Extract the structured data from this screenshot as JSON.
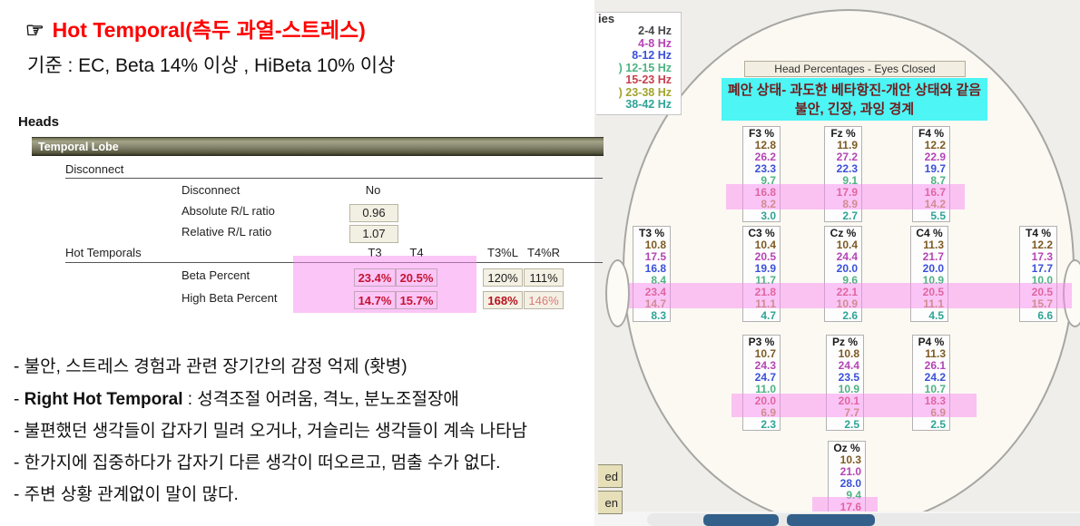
{
  "left_panel": {
    "pointer": "☞",
    "title": "Hot Temporal(측두 과열-스트레스)",
    "title_color": "#ff0000",
    "criteria": "기준 : EC, Beta 14% 이상 , HiBeta 10% 이상",
    "heads_label": "Heads",
    "section_header": "Temporal Lobe",
    "disconnect": {
      "group_label": "Disconnect",
      "rows": [
        {
          "label": "Disconnect",
          "value": "No",
          "boxed": false
        },
        {
          "label": "Absolute R/L ratio",
          "value": "0.96",
          "boxed": true
        },
        {
          "label": "Relative R/L ratio",
          "value": "1.07",
          "boxed": true
        }
      ]
    },
    "hot_temporals": {
      "group_label": "Hot Temporals",
      "columns": [
        "T3",
        "T4",
        "T3%L",
        "T4%R"
      ],
      "rows": [
        {
          "label": "Beta Percent",
          "t3": "23.4%",
          "t4": "20.5%",
          "ratio_l": "120%",
          "ratio_r": "111%",
          "ratio_l_style": "plain",
          "ratio_r_style": "plain"
        },
        {
          "label": "High Beta Percent",
          "t3": "14.7%",
          "t4": "15.7%",
          "ratio_l": "168%",
          "ratio_r": "146%",
          "ratio_l_style": "red-bold",
          "ratio_r_style": "red-light"
        }
      ]
    },
    "bullets": [
      {
        "pre": "- ",
        "bold": "",
        "rest": "불안, 스트레스 경험과 관련 장기간의 감정 억제 (홧병)"
      },
      {
        "pre": "- ",
        "bold": "Right Hot Temporal",
        "rest": "  : 성격조절 어려움, 격노, 분노조절장애"
      },
      {
        "pre": "- ",
        "bold": "",
        "rest": "불편했던 생각들이 갑자기 밀려 오거나, 거슬리는 생각들이 계속 나타남"
      },
      {
        "pre": "- ",
        "bold": "",
        "rest": "한가지에 집중하다가 갑자기 다른 생각이 떠오르고, 멈출 수가 없다."
      },
      {
        "pre": "- ",
        "bold": "",
        "rest": "주변 상황 관계없이 말이 많다."
      }
    ]
  },
  "head_map": {
    "legend": {
      "header": "ies",
      "items": [
        {
          "label": "2-4 Hz",
          "color": "#46464a"
        },
        {
          "label": "4-8 Hz",
          "color": "#b544b5"
        },
        {
          "label": "8-12 Hz",
          "color": "#3a50d9"
        },
        {
          "label": ") 12-15 Hz",
          "color": "#4db381"
        },
        {
          "label": "15-23 Hz",
          "color": "#c8404e"
        },
        {
          "label": ") 23-38 Hz",
          "color": "#a3a32e"
        },
        {
          "label": "38-42 Hz",
          "color": "#2ea496"
        }
      ]
    },
    "caption": "Head Percentages - Eyes Closed",
    "callout": {
      "line1": "폐안 상태- 과도한 베타항진-개안 상태와 같음",
      "line2": "불안, 긴장, 과잉 경계",
      "bg_color": "#4df5f5",
      "text_color": "#701d1d"
    },
    "band_value_colors": [
      "#7d5a22",
      "#b544b5",
      "#3a50d9",
      "#4db381",
      "#c83e50",
      "#ab8b33",
      "#2ea496"
    ],
    "highlight_color": "rgba(247,140,240,0.5)",
    "electrodes": [
      {
        "id": "F3",
        "label": "F3 %",
        "values": [
          "12.8",
          "26.2",
          "23.3",
          "9.7",
          "16.8",
          "8.2",
          "3.0"
        ]
      },
      {
        "id": "Fz",
        "label": "Fz %",
        "values": [
          "11.9",
          "27.2",
          "22.3",
          "9.1",
          "17.9",
          "8.9",
          "2.7"
        ]
      },
      {
        "id": "F4",
        "label": "F4 %",
        "values": [
          "12.2",
          "22.9",
          "19.7",
          "8.7",
          "16.7",
          "14.2",
          "5.5"
        ]
      },
      {
        "id": "T3",
        "label": "T3 %",
        "values": [
          "10.8",
          "17.5",
          "16.8",
          "8.4",
          "23.4",
          "14.7",
          "8.3"
        ]
      },
      {
        "id": "C3",
        "label": "C3 %",
        "values": [
          "10.4",
          "20.5",
          "19.9",
          "11.7",
          "21.8",
          "11.1",
          "4.7"
        ]
      },
      {
        "id": "Cz",
        "label": "Cz %",
        "values": [
          "10.4",
          "24.4",
          "20.0",
          "9.6",
          "22.1",
          "10.9",
          "2.6"
        ]
      },
      {
        "id": "C4",
        "label": "C4 %",
        "values": [
          "11.3",
          "21.7",
          "20.0",
          "10.9",
          "20.5",
          "11.1",
          "4.5"
        ]
      },
      {
        "id": "T4",
        "label": "T4 %",
        "values": [
          "12.2",
          "17.3",
          "17.7",
          "10.0",
          "20.5",
          "15.7",
          "6.6"
        ]
      },
      {
        "id": "P3",
        "label": "P3 %",
        "values": [
          "10.7",
          "24.3",
          "24.7",
          "11.0",
          "20.0",
          "6.9",
          "2.3"
        ]
      },
      {
        "id": "Pz",
        "label": "Pz %",
        "values": [
          "10.8",
          "24.4",
          "23.5",
          "10.9",
          "20.1",
          "7.7",
          "2.5"
        ]
      },
      {
        "id": "P4",
        "label": "P4 %",
        "values": [
          "11.3",
          "26.1",
          "24.2",
          "10.7",
          "18.3",
          "6.9",
          "2.5"
        ]
      },
      {
        "id": "Oz",
        "label": "Oz %",
        "values": [
          "10.3",
          "21.0",
          "28.0",
          "9.4",
          "17.6"
        ]
      }
    ],
    "partial_buttons": [
      "ed",
      "en"
    ]
  }
}
